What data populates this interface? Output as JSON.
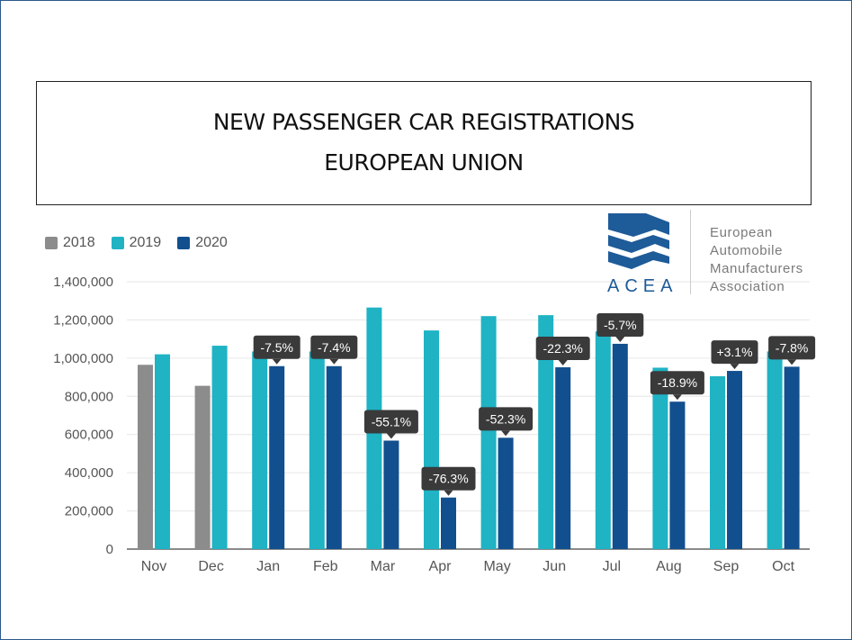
{
  "title": {
    "line1": "NEW PASSENGER CAR REGISTRATIONS",
    "line2": "EUROPEAN UNION"
  },
  "logo": {
    "wordmark": "ACEA",
    "org_lines": [
      "European",
      "Automobile",
      "Manufacturers",
      "Association"
    ]
  },
  "colors": {
    "s2018": "#8c8c8c",
    "s2019": "#1fb3c4",
    "s2020": "#124f8e",
    "label_bg": "#3a3a3a",
    "logo_blue": "#1e5b99"
  },
  "chart_data": {
    "type": "bar",
    "title": "NEW PASSENGER CAR REGISTRATIONS EUROPEAN UNION",
    "xlabel": "",
    "ylabel": "",
    "ylim": [
      0,
      1400000
    ],
    "yticks": [
      0,
      200000,
      400000,
      600000,
      800000,
      1000000,
      1200000,
      1400000
    ],
    "ytick_labels": [
      "0",
      "200,000",
      "400,000",
      "600,000",
      "800,000",
      "1,000,000",
      "1,200,000",
      "1,400,000"
    ],
    "categories": [
      "Nov",
      "Dec",
      "Jan",
      "Feb",
      "Mar",
      "Apr",
      "May",
      "Jun",
      "Jul",
      "Aug",
      "Sep",
      "Oct"
    ],
    "series": [
      {
        "name": "2018",
        "color": "#8c8c8c",
        "values": [
          965000,
          855000,
          null,
          null,
          null,
          null,
          null,
          null,
          null,
          null,
          null,
          null
        ]
      },
      {
        "name": "2019",
        "color": "#1fb3c4",
        "values": [
          1020000,
          1065000,
          1035000,
          1035000,
          1265000,
          1145000,
          1220000,
          1225000,
          1140000,
          950000,
          905000,
          1035000
        ]
      },
      {
        "name": "2020",
        "color": "#124f8e",
        "values": [
          null,
          null,
          958000,
          958000,
          568000,
          270000,
          583000,
          952000,
          1075000,
          772000,
          933000,
          955000
        ]
      }
    ],
    "change_labels": [
      "",
      "",
      "-7.5%",
      "-7.4%",
      "-55.1%",
      "-76.3%",
      "-52.3%",
      "-22.3%",
      "-5.7%",
      "-18.9%",
      "+3.1%",
      "-7.8%"
    ],
    "legend_position": "top-left",
    "grid": true
  }
}
